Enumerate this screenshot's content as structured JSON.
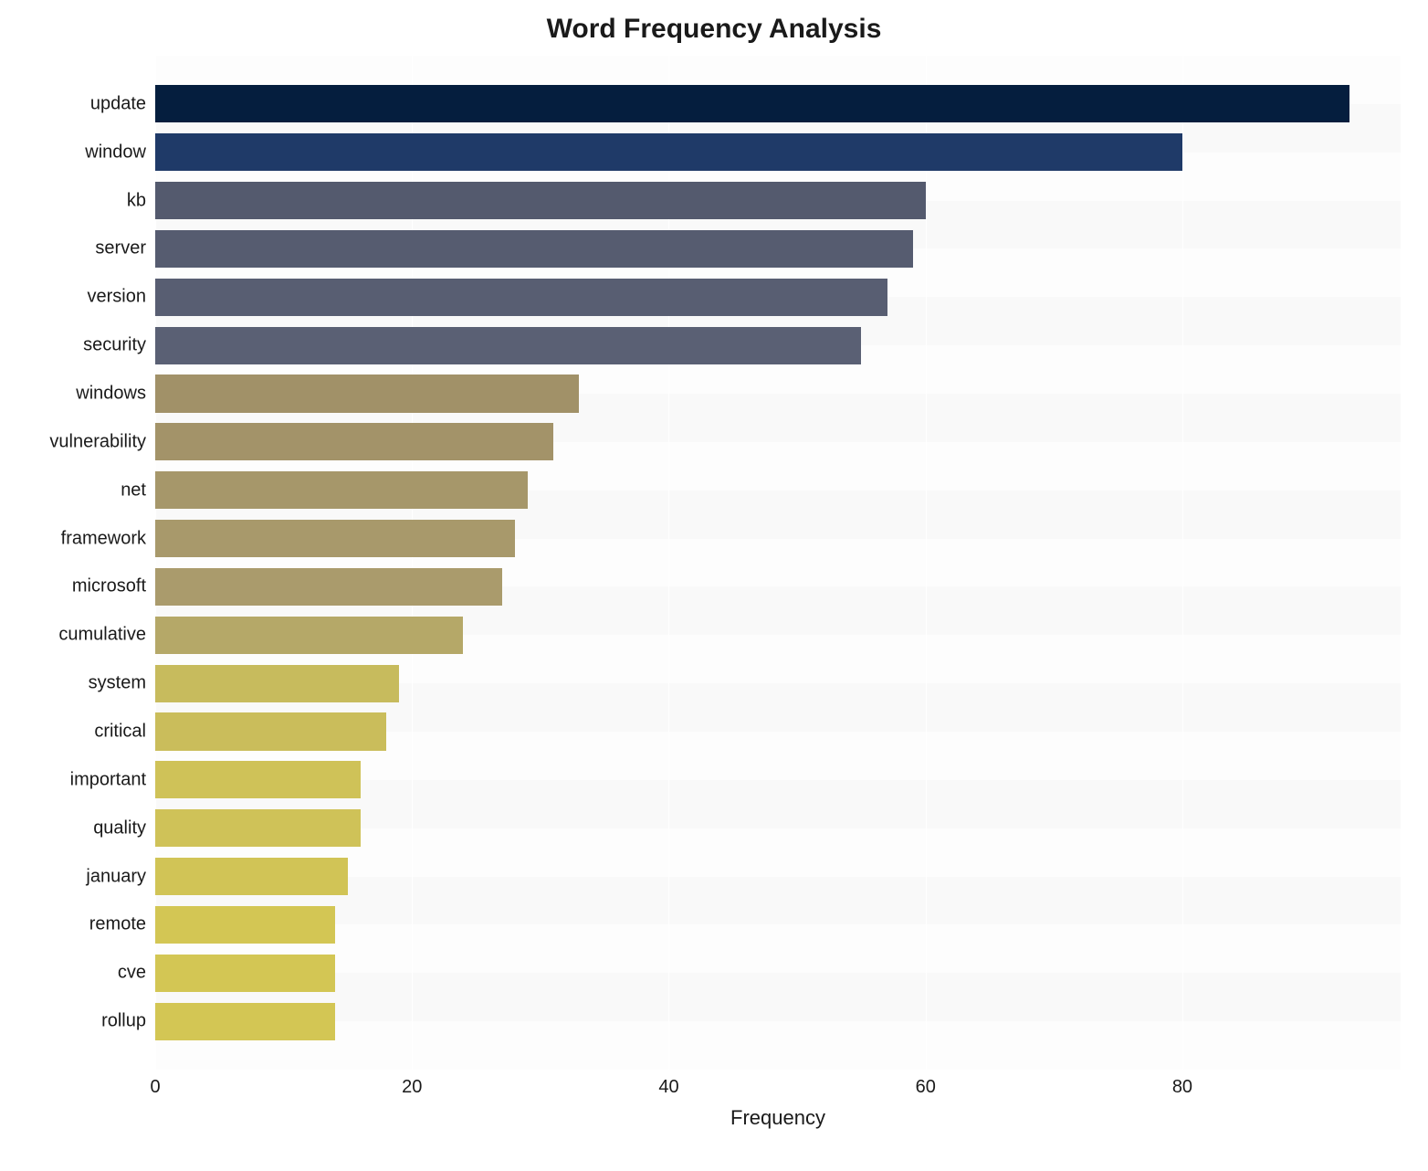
{
  "chart": {
    "type": "bar",
    "orientation": "horizontal",
    "title": "Word Frequency Analysis",
    "title_fontsize": 30,
    "title_fontweight": 700,
    "xlabel": "Frequency",
    "label_fontsize": 22,
    "tick_fontsize": 20,
    "xlim": [
      0,
      97
    ],
    "xticks": [
      0,
      20,
      40,
      60,
      80
    ],
    "background_color": "#f9f9f9",
    "band_color": "#ffffff",
    "grid_color": "#ffffff",
    "bar_height_ratio": 0.78,
    "categories": [
      "update",
      "window",
      "kb",
      "server",
      "version",
      "security",
      "windows",
      "vulnerability",
      "net",
      "framework",
      "microsoft",
      "cumulative",
      "system",
      "critical",
      "important",
      "quality",
      "january",
      "remote",
      "cve",
      "rollup"
    ],
    "values": [
      93,
      80,
      60,
      59,
      57,
      55,
      33,
      31,
      29,
      28,
      27,
      24,
      19,
      18,
      16,
      16,
      15,
      14,
      14,
      14
    ],
    "bar_colors": [
      "#051e3e",
      "#1f3a68",
      "#545a6e",
      "#565c70",
      "#585e72",
      "#5a6074",
      "#a19168",
      "#a39369",
      "#a6976a",
      "#a8996b",
      "#aa9b6c",
      "#b5a868",
      "#c7bb5d",
      "#cabd5b",
      "#cfc258",
      "#cfc258",
      "#d1c456",
      "#d3c654",
      "#d3c654",
      "#d3c654"
    ]
  }
}
